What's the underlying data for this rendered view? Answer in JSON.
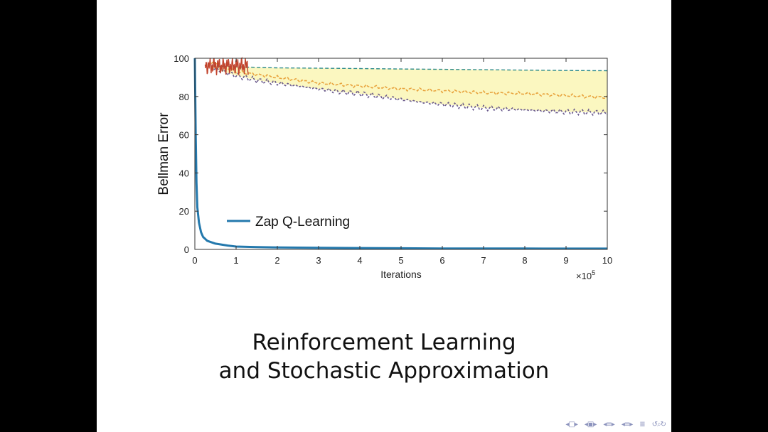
{
  "slide": {
    "title_line1": "Reinforcement Learning",
    "title_line2": "and Stochastic Approximation"
  },
  "nav": {
    "icons": [
      "nav-prev-frame-icon",
      "nav-prev-subsection-icon",
      "nav-prev-section-icon",
      "nav-prev-slide-icon",
      "nav-align-icon",
      "nav-search-icon"
    ]
  },
  "colors": {
    "zap": "#2479ad",
    "band_fill": "#fbf7c0",
    "band_mid": "#e8a33d",
    "band_lower": "#6a5a8c",
    "upper_dashed": "#2e8b8b",
    "early_noise": "#c2452e"
  },
  "chart_data": {
    "type": "line",
    "xlabel": "Iterations",
    "ylabel": "Bellman Error",
    "x_multiplier": "×10",
    "x_multiplier_exp": "5",
    "xlim": [
      0,
      10
    ],
    "ylim": [
      0,
      100
    ],
    "xticks": [
      0,
      1,
      2,
      3,
      4,
      5,
      6,
      7,
      8,
      9,
      10
    ],
    "yticks": [
      0,
      20,
      40,
      60,
      80,
      100
    ],
    "grid": false,
    "legend": {
      "placement": "bottom-left",
      "entries": [
        "Zap Q-Learning"
      ]
    },
    "series": [
      {
        "name": "Zap Q-Learning",
        "style": "solid",
        "x": [
          0,
          0.02,
          0.04,
          0.06,
          0.1,
          0.15,
          0.2,
          0.3,
          0.5,
          0.8,
          1.0,
          1.5,
          2,
          3,
          4,
          5,
          6,
          7,
          8,
          9,
          10
        ],
        "y": [
          100,
          60,
          35,
          22,
          14,
          9,
          6.5,
          4.5,
          3,
          2,
          1.5,
          1.2,
          1,
          0.8,
          0.7,
          0.6,
          0.5,
          0.5,
          0.45,
          0.4,
          0.4
        ]
      },
      {
        "style": "dashed-upper",
        "x": [
          0.4,
          1,
          2,
          3,
          4,
          5,
          6,
          7,
          8,
          9,
          10
        ],
        "y": [
          96,
          95.5,
          95,
          94.8,
          94.6,
          94.4,
          94.2,
          94,
          93.8,
          93.6,
          93.5
        ]
      },
      {
        "style": "dashed-mid",
        "x": [
          0.4,
          1,
          2,
          3,
          4,
          5,
          6,
          7,
          8,
          9,
          10
        ],
        "y": [
          98,
          93,
          90,
          87,
          85.5,
          84,
          83,
          82,
          81.5,
          80.5,
          79.5
        ]
      },
      {
        "style": "dashed-lower",
        "x": [
          0.4,
          1,
          1.5,
          2,
          2.5,
          3,
          3.5,
          4,
          4.5,
          5,
          5.5,
          6,
          6.5,
          7,
          7.5,
          8,
          8.5,
          9,
          9.5,
          10
        ],
        "y": [
          95,
          91,
          88.5,
          87,
          85.5,
          84,
          82.5,
          81.5,
          80,
          78.5,
          77,
          76,
          75,
          74,
          73.5,
          73,
          72.5,
          72,
          71.8,
          71.5
        ]
      }
    ]
  }
}
